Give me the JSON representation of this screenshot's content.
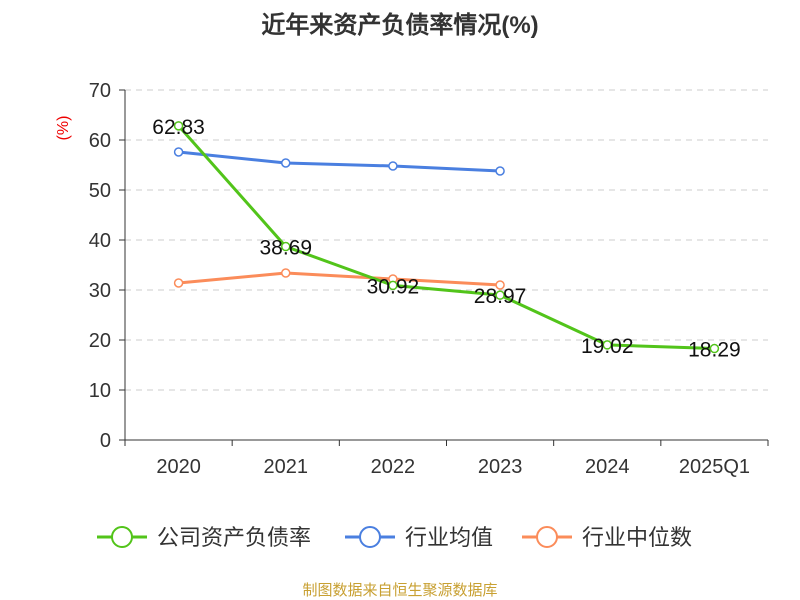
{
  "chart_data": {
    "type": "line",
    "title": "近年来资产负债率情况(%)",
    "ylabel": "(%)",
    "xlabel": "",
    "categories": [
      "2020",
      "2021",
      "2022",
      "2023",
      "2024",
      "2025Q1"
    ],
    "ylim": [
      0,
      70
    ],
    "yticks": [
      "0",
      "10",
      "20",
      "30",
      "40",
      "50",
      "60",
      "70"
    ],
    "grid": true,
    "legend_position": "bottom",
    "series": [
      {
        "name": "公司资产负债率",
        "color": "#52c41a",
        "values": [
          62.83,
          38.69,
          30.92,
          28.97,
          19.02,
          18.29
        ],
        "labels": [
          "62.83",
          "38.69",
          "30.92",
          "28.97",
          "19.02",
          "18.29"
        ]
      },
      {
        "name": "行业均值",
        "color": "#4a7fe0",
        "values": [
          57.6,
          55.4,
          54.8,
          53.8,
          null,
          null
        ]
      },
      {
        "name": "行业中位数",
        "color": "#fb8c5a",
        "values": [
          31.4,
          33.4,
          32.2,
          31.0,
          null,
          null
        ]
      }
    ]
  },
  "source": "制图数据来自恒生聚源数据库"
}
